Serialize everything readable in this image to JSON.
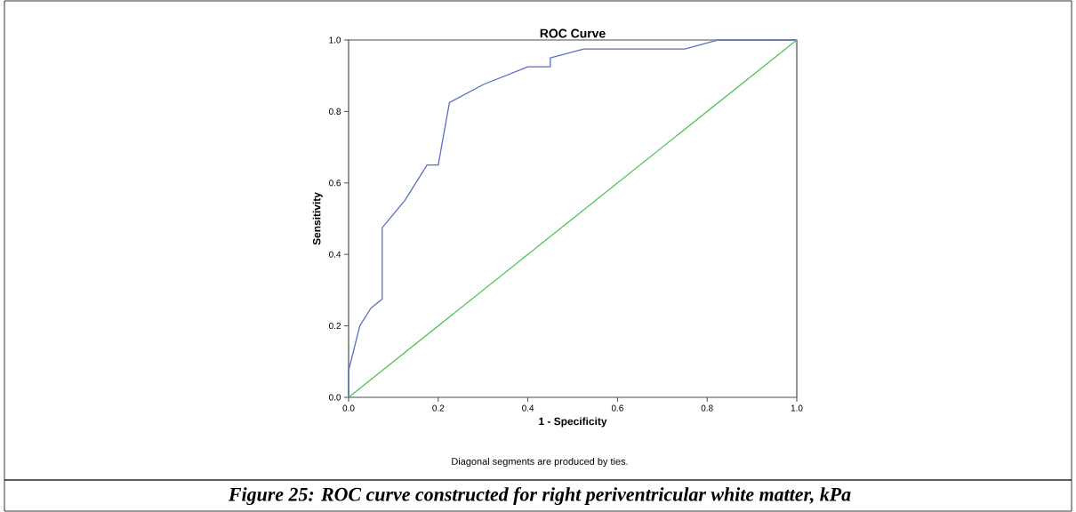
{
  "chart_data": {
    "type": "line",
    "title": "ROC Curve",
    "xlabel": "1 - Specificity",
    "ylabel": "Sensitivity",
    "annotations": [
      "Diagonal segments are produced by ties.",
      "Figure 25: ROC curve constructed for right periventricular white matter, kPa"
    ],
    "marker": "none",
    "line_style": "solid",
    "xlim": [
      0,
      1
    ],
    "ylim": [
      0,
      1
    ],
    "xticks": [
      {
        "value": 0,
        "label": "0.0"
      },
      {
        "value": 0.2,
        "label": "0.2"
      },
      {
        "value": 0.4,
        "label": "0.4"
      },
      {
        "value": 0.6,
        "label": "0.6"
      },
      {
        "value": 0.8,
        "label": "0.8"
      },
      {
        "value": 1,
        "label": "1.0"
      }
    ],
    "yticks": [
      {
        "value": 0,
        "label": "0.0"
      },
      {
        "value": 0.2,
        "label": "0.2"
      },
      {
        "value": 0.4,
        "label": "0.4"
      },
      {
        "value": 0.6,
        "label": "0.6"
      },
      {
        "value": 0.8,
        "label": "0.8"
      },
      {
        "value": 1,
        "label": "1.0"
      }
    ],
    "series": [
      {
        "color": "#5a6fc0",
        "x": [
          0,
          0,
          0.025,
          0.05,
          0.075,
          0.075,
          0.125,
          0.175,
          0.2,
          0.225,
          0.3,
          0.4,
          0.45,
          0.45,
          0.525,
          0.75,
          0.825,
          1
        ],
        "values": [
          0,
          0.075,
          0.2,
          0.25,
          0.275,
          0.475,
          0.55,
          0.65,
          0.65,
          0.825,
          0.875,
          0.925,
          0.925,
          0.95,
          0.975,
          0.975,
          1,
          1
        ]
      },
      {
        "color": "#4fc35a",
        "x": [
          0,
          1
        ],
        "values": [
          0,
          1
        ]
      }
    ]
  }
}
